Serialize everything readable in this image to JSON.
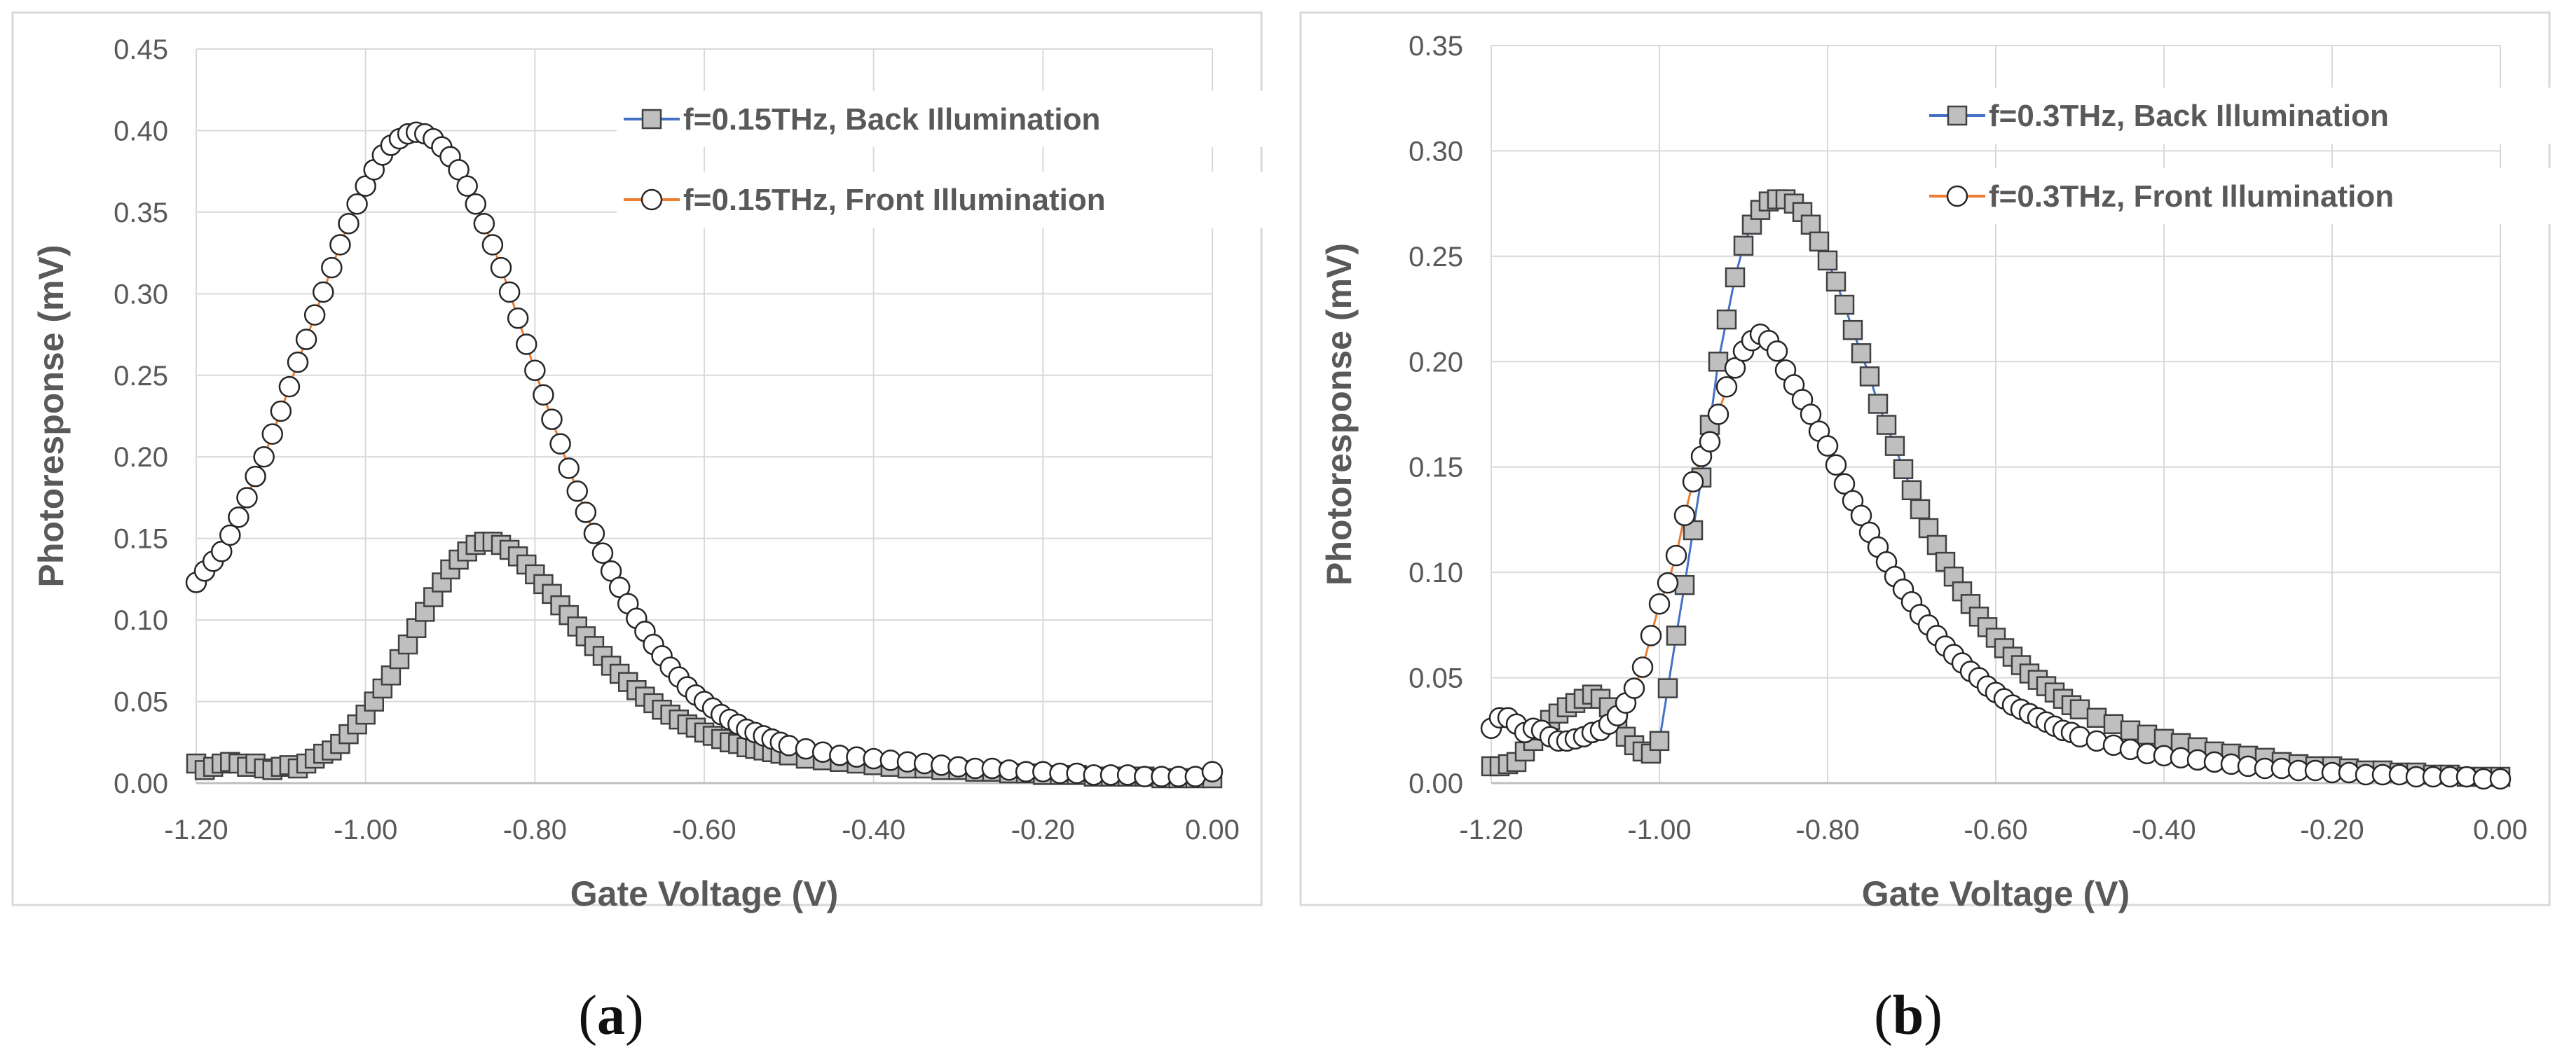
{
  "chart_data": [
    {
      "id": "a",
      "type": "scatter",
      "caption_open": "(",
      "caption_letter": "a",
      "caption_close": ")",
      "xlabel": "Gate Voltage (V)",
      "ylabel": "Photoresponse (mV)",
      "xlim": [
        -1.2,
        0.0
      ],
      "ylim": [
        0,
        0.45
      ],
      "xticks": [
        -1.2,
        -1.0,
        -0.8,
        -0.6,
        -0.4,
        -0.2,
        0.0
      ],
      "xtick_labels": [
        "-1.20",
        "-1.00",
        "-0.80",
        "-0.60",
        "-0.40",
        "-0.20",
        "0.00"
      ],
      "yticks": [
        0,
        0.05,
        0.1,
        0.15,
        0.2,
        0.25,
        0.3,
        0.35,
        0.4,
        0.45
      ],
      "ytick_labels": [
        "0.00",
        "0.05",
        "0.10",
        "0.15",
        "0.20",
        "0.25",
        "0.30",
        "0.35",
        "0.40",
        "0.45"
      ],
      "grid": true,
      "legend_position": "top-right",
      "series": [
        {
          "name": "f=0.15THz, Back Illumination",
          "marker": "square",
          "line_color": "#4472C4",
          "marker_fill": "#BFBFBF",
          "x": [
            -1.2,
            -1.19,
            -1.18,
            -1.17,
            -1.16,
            -1.15,
            -1.14,
            -1.13,
            -1.12,
            -1.11,
            -1.1,
            -1.09,
            -1.08,
            -1.07,
            -1.06,
            -1.05,
            -1.04,
            -1.03,
            -1.02,
            -1.01,
            -1.0,
            -0.99,
            -0.98,
            -0.97,
            -0.96,
            -0.95,
            -0.94,
            -0.93,
            -0.92,
            -0.91,
            -0.9,
            -0.89,
            -0.88,
            -0.87,
            -0.86,
            -0.85,
            -0.84,
            -0.83,
            -0.82,
            -0.81,
            -0.8,
            -0.79,
            -0.78,
            -0.77,
            -0.76,
            -0.75,
            -0.74,
            -0.73,
            -0.72,
            -0.71,
            -0.7,
            -0.69,
            -0.68,
            -0.67,
            -0.66,
            -0.65,
            -0.64,
            -0.63,
            -0.62,
            -0.61,
            -0.6,
            -0.59,
            -0.58,
            -0.57,
            -0.56,
            -0.55,
            -0.54,
            -0.53,
            -0.52,
            -0.51,
            -0.5,
            -0.48,
            -0.46,
            -0.44,
            -0.42,
            -0.4,
            -0.38,
            -0.36,
            -0.34,
            -0.32,
            -0.3,
            -0.28,
            -0.26,
            -0.24,
            -0.22,
            -0.2,
            -0.18,
            -0.16,
            -0.14,
            -0.12,
            -0.1,
            -0.08,
            -0.06,
            -0.04,
            -0.02,
            0.0
          ],
          "y": [
            0.012,
            0.008,
            0.01,
            0.012,
            0.013,
            0.012,
            0.01,
            0.012,
            0.009,
            0.008,
            0.01,
            0.011,
            0.009,
            0.012,
            0.015,
            0.018,
            0.02,
            0.024,
            0.03,
            0.036,
            0.042,
            0.05,
            0.058,
            0.066,
            0.076,
            0.085,
            0.095,
            0.105,
            0.114,
            0.123,
            0.131,
            0.137,
            0.142,
            0.146,
            0.148,
            0.148,
            0.146,
            0.143,
            0.139,
            0.134,
            0.128,
            0.122,
            0.116,
            0.109,
            0.103,
            0.096,
            0.09,
            0.084,
            0.078,
            0.072,
            0.067,
            0.062,
            0.057,
            0.053,
            0.049,
            0.045,
            0.042,
            0.039,
            0.036,
            0.034,
            0.031,
            0.029,
            0.027,
            0.025,
            0.024,
            0.022,
            0.021,
            0.02,
            0.019,
            0.018,
            0.017,
            0.015,
            0.014,
            0.013,
            0.012,
            0.011,
            0.01,
            0.009,
            0.009,
            0.008,
            0.008,
            0.007,
            0.007,
            0.006,
            0.006,
            0.005,
            0.005,
            0.005,
            0.004,
            0.004,
            0.004,
            0.004,
            0.003,
            0.003,
            0.003,
            0.003
          ]
        },
        {
          "name": "f=0.15THz, Front Illumination",
          "marker": "circle",
          "line_color": "#ED7D31",
          "marker_fill": "#FFFFFF",
          "x": [
            -1.2,
            -1.19,
            -1.18,
            -1.17,
            -1.16,
            -1.15,
            -1.14,
            -1.13,
            -1.12,
            -1.11,
            -1.1,
            -1.09,
            -1.08,
            -1.07,
            -1.06,
            -1.05,
            -1.04,
            -1.03,
            -1.02,
            -1.01,
            -1.0,
            -0.99,
            -0.98,
            -0.97,
            -0.96,
            -0.95,
            -0.94,
            -0.93,
            -0.92,
            -0.91,
            -0.9,
            -0.89,
            -0.88,
            -0.87,
            -0.86,
            -0.85,
            -0.84,
            -0.83,
            -0.82,
            -0.81,
            -0.8,
            -0.79,
            -0.78,
            -0.77,
            -0.76,
            -0.75,
            -0.74,
            -0.73,
            -0.72,
            -0.71,
            -0.7,
            -0.69,
            -0.68,
            -0.67,
            -0.66,
            -0.65,
            -0.64,
            -0.63,
            -0.62,
            -0.61,
            -0.6,
            -0.59,
            -0.58,
            -0.57,
            -0.56,
            -0.55,
            -0.54,
            -0.53,
            -0.52,
            -0.51,
            -0.5,
            -0.48,
            -0.46,
            -0.44,
            -0.42,
            -0.4,
            -0.38,
            -0.36,
            -0.34,
            -0.32,
            -0.3,
            -0.28,
            -0.26,
            -0.24,
            -0.22,
            -0.2,
            -0.18,
            -0.16,
            -0.14,
            -0.12,
            -0.1,
            -0.08,
            -0.06,
            -0.04,
            -0.02,
            0.0
          ],
          "y": [
            0.123,
            0.13,
            0.136,
            0.142,
            0.152,
            0.163,
            0.175,
            0.188,
            0.2,
            0.214,
            0.228,
            0.243,
            0.258,
            0.272,
            0.287,
            0.301,
            0.316,
            0.33,
            0.343,
            0.355,
            0.366,
            0.376,
            0.385,
            0.391,
            0.395,
            0.398,
            0.399,
            0.398,
            0.395,
            0.39,
            0.384,
            0.376,
            0.366,
            0.355,
            0.343,
            0.33,
            0.316,
            0.301,
            0.285,
            0.269,
            0.253,
            0.238,
            0.223,
            0.208,
            0.193,
            0.179,
            0.166,
            0.153,
            0.141,
            0.13,
            0.12,
            0.11,
            0.101,
            0.093,
            0.085,
            0.078,
            0.071,
            0.065,
            0.059,
            0.054,
            0.05,
            0.046,
            0.042,
            0.039,
            0.036,
            0.033,
            0.031,
            0.029,
            0.027,
            0.025,
            0.023,
            0.021,
            0.019,
            0.017,
            0.016,
            0.015,
            0.014,
            0.013,
            0.012,
            0.011,
            0.01,
            0.009,
            0.009,
            0.008,
            0.007,
            0.007,
            0.006,
            0.006,
            0.005,
            0.005,
            0.005,
            0.004,
            0.004,
            0.004,
            0.004,
            0.007
          ]
        }
      ]
    },
    {
      "id": "b",
      "type": "scatter",
      "caption_open": "(",
      "caption_letter": "b",
      "caption_close": ")",
      "xlabel": "Gate Voltage (V)",
      "ylabel": "Photoresponse (mV)",
      "xlim": [
        -1.2,
        0.0
      ],
      "ylim": [
        0,
        0.35
      ],
      "xticks": [
        -1.2,
        -1.0,
        -0.8,
        -0.6,
        -0.4,
        -0.2,
        0.0
      ],
      "xtick_labels": [
        "-1.20",
        "-1.00",
        "-0.80",
        "-0.60",
        "-0.40",
        "-0.20",
        "0.00"
      ],
      "yticks": [
        0,
        0.05,
        0.1,
        0.15,
        0.2,
        0.25,
        0.3,
        0.35
      ],
      "ytick_labels": [
        "0.00",
        "0.05",
        "0.10",
        "0.15",
        "0.20",
        "0.25",
        "0.30",
        "0.35"
      ],
      "grid": true,
      "legend_position": "top-right",
      "series": [
        {
          "name": "f=0.3THz, Back Illumination",
          "marker": "square",
          "line_color": "#4472C4",
          "marker_fill": "#BFBFBF",
          "x": [
            -1.2,
            -1.19,
            -1.18,
            -1.17,
            -1.16,
            -1.15,
            -1.14,
            -1.13,
            -1.12,
            -1.11,
            -1.1,
            -1.09,
            -1.08,
            -1.07,
            -1.06,
            -1.05,
            -1.04,
            -1.03,
            -1.02,
            -1.01,
            -1.0,
            -0.99,
            -0.98,
            -0.97,
            -0.96,
            -0.95,
            -0.94,
            -0.93,
            -0.92,
            -0.91,
            -0.9,
            -0.89,
            -0.88,
            -0.87,
            -0.86,
            -0.85,
            -0.84,
            -0.83,
            -0.82,
            -0.81,
            -0.8,
            -0.79,
            -0.78,
            -0.77,
            -0.76,
            -0.75,
            -0.74,
            -0.73,
            -0.72,
            -0.71,
            -0.7,
            -0.69,
            -0.68,
            -0.67,
            -0.66,
            -0.65,
            -0.64,
            -0.63,
            -0.62,
            -0.61,
            -0.6,
            -0.59,
            -0.58,
            -0.57,
            -0.56,
            -0.55,
            -0.54,
            -0.53,
            -0.52,
            -0.51,
            -0.5,
            -0.48,
            -0.46,
            -0.44,
            -0.42,
            -0.4,
            -0.38,
            -0.36,
            -0.34,
            -0.32,
            -0.3,
            -0.28,
            -0.26,
            -0.24,
            -0.22,
            -0.2,
            -0.18,
            -0.16,
            -0.14,
            -0.12,
            -0.1,
            -0.08,
            -0.06,
            -0.04,
            -0.02,
            0.0
          ],
          "y": [
            0.008,
            0.008,
            0.009,
            0.01,
            0.015,
            0.02,
            0.025,
            0.03,
            0.033,
            0.036,
            0.038,
            0.04,
            0.042,
            0.04,
            0.036,
            0.03,
            0.022,
            0.018,
            0.015,
            0.014,
            0.02,
            0.045,
            0.07,
            0.094,
            0.12,
            0.145,
            0.17,
            0.2,
            0.22,
            0.24,
            0.255,
            0.265,
            0.272,
            0.276,
            0.277,
            0.277,
            0.275,
            0.271,
            0.265,
            0.257,
            0.248,
            0.238,
            0.227,
            0.215,
            0.204,
            0.193,
            0.18,
            0.17,
            0.16,
            0.149,
            0.139,
            0.13,
            0.121,
            0.113,
            0.105,
            0.098,
            0.091,
            0.085,
            0.079,
            0.074,
            0.069,
            0.064,
            0.06,
            0.056,
            0.052,
            0.049,
            0.046,
            0.043,
            0.04,
            0.037,
            0.035,
            0.031,
            0.028,
            0.025,
            0.023,
            0.021,
            0.019,
            0.017,
            0.015,
            0.014,
            0.013,
            0.012,
            0.01,
            0.009,
            0.008,
            0.008,
            0.007,
            0.006,
            0.006,
            0.005,
            0.005,
            0.004,
            0.004,
            0.003,
            0.003,
            0.003
          ]
        },
        {
          "name": "f=0.3THz, Front Illumination",
          "marker": "circle",
          "line_color": "#ED7D31",
          "marker_fill": "#FFFFFF",
          "x": [
            -1.2,
            -1.19,
            -1.18,
            -1.17,
            -1.16,
            -1.15,
            -1.14,
            -1.13,
            -1.12,
            -1.11,
            -1.1,
            -1.09,
            -1.08,
            -1.07,
            -1.06,
            -1.05,
            -1.04,
            -1.03,
            -1.02,
            -1.01,
            -1.0,
            -0.99,
            -0.98,
            -0.97,
            -0.96,
            -0.95,
            -0.94,
            -0.93,
            -0.92,
            -0.91,
            -0.9,
            -0.89,
            -0.88,
            -0.87,
            -0.86,
            -0.85,
            -0.84,
            -0.83,
            -0.82,
            -0.81,
            -0.8,
            -0.79,
            -0.78,
            -0.77,
            -0.76,
            -0.75,
            -0.74,
            -0.73,
            -0.72,
            -0.71,
            -0.7,
            -0.69,
            -0.68,
            -0.67,
            -0.66,
            -0.65,
            -0.64,
            -0.63,
            -0.62,
            -0.61,
            -0.6,
            -0.59,
            -0.58,
            -0.57,
            -0.56,
            -0.55,
            -0.54,
            -0.53,
            -0.52,
            -0.51,
            -0.5,
            -0.48,
            -0.46,
            -0.44,
            -0.42,
            -0.4,
            -0.38,
            -0.36,
            -0.34,
            -0.32,
            -0.3,
            -0.28,
            -0.26,
            -0.24,
            -0.22,
            -0.2,
            -0.18,
            -0.16,
            -0.14,
            -0.12,
            -0.1,
            -0.08,
            -0.06,
            -0.04,
            -0.02,
            0.0
          ],
          "y": [
            0.026,
            0.031,
            0.031,
            0.028,
            0.024,
            0.026,
            0.025,
            0.022,
            0.02,
            0.02,
            0.021,
            0.022,
            0.024,
            0.025,
            0.028,
            0.032,
            0.038,
            0.045,
            0.055,
            0.07,
            0.085,
            0.095,
            0.108,
            0.127,
            0.143,
            0.155,
            0.162,
            0.175,
            0.188,
            0.197,
            0.205,
            0.21,
            0.213,
            0.21,
            0.205,
            0.196,
            0.189,
            0.182,
            0.175,
            0.167,
            0.16,
            0.151,
            0.142,
            0.134,
            0.127,
            0.119,
            0.112,
            0.105,
            0.098,
            0.092,
            0.086,
            0.08,
            0.075,
            0.07,
            0.065,
            0.061,
            0.057,
            0.053,
            0.05,
            0.046,
            0.043,
            0.04,
            0.037,
            0.035,
            0.033,
            0.031,
            0.029,
            0.027,
            0.025,
            0.024,
            0.022,
            0.02,
            0.018,
            0.016,
            0.014,
            0.013,
            0.012,
            0.011,
            0.01,
            0.009,
            0.008,
            0.007,
            0.007,
            0.006,
            0.006,
            0.005,
            0.005,
            0.004,
            0.004,
            0.004,
            0.003,
            0.003,
            0.003,
            0.003,
            0.002,
            0.002
          ]
        }
      ]
    }
  ]
}
